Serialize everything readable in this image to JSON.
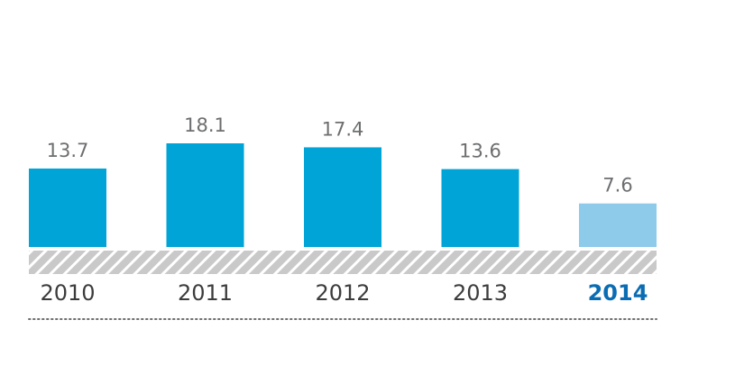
{
  "chart_data": {
    "type": "bar",
    "title": "",
    "xlabel": "",
    "ylabel": "",
    "categories": [
      "2010",
      "2011",
      "2012",
      "2013",
      "2014"
    ],
    "values": [
      13.7,
      18.1,
      17.4,
      13.6,
      7.6
    ],
    "value_labels": [
      "13.7",
      "18.1",
      "17.4",
      "13.6",
      "7.6"
    ],
    "highlight_category": "2014",
    "ylim": [
      0,
      18.1
    ],
    "grid": false,
    "legend": "none",
    "colors": {
      "bar": "#00a4d6",
      "bar_highlight": "#8ecbea",
      "value_label": "#6d6e70",
      "year_label": "#3c3c3c",
      "year_label_highlight": "#0a6db3",
      "hatch_band_bg": "#c9c9c9",
      "hatch_band_stripe": "#ffffff",
      "dotted_line": "#6d6e70"
    }
  }
}
